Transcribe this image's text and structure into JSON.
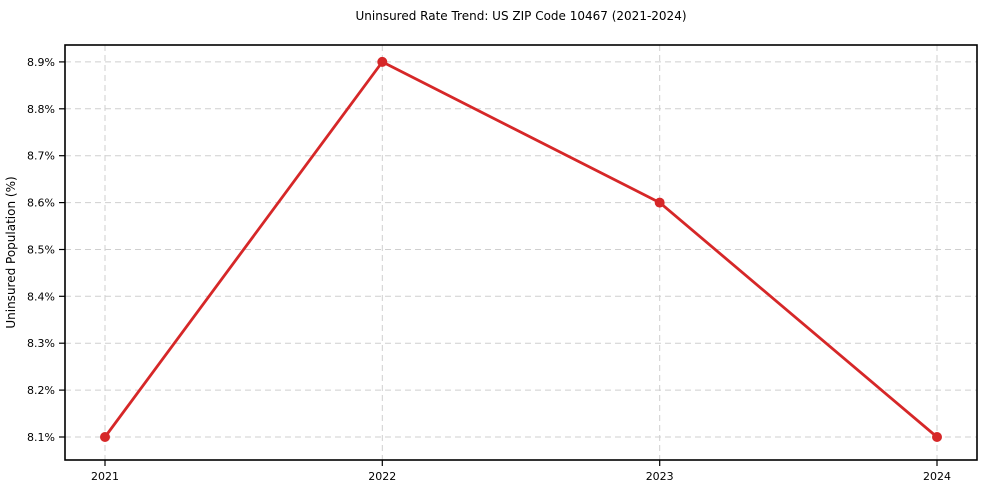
{
  "chart_data": {
    "type": "line",
    "title": "Uninsured Rate Trend: US ZIP Code 10467 (2021-2024)",
    "xlabel": "",
    "ylabel": "Uninsured Population (%)",
    "categories": [
      "2021",
      "2022",
      "2023",
      "2024"
    ],
    "values": [
      8.1,
      8.9,
      8.6,
      8.1
    ],
    "y_ticks": [
      8.1,
      8.2,
      8.3,
      8.4,
      8.5,
      8.6,
      8.7,
      8.8,
      8.9
    ],
    "y_tick_labels": [
      "8.1%",
      "8.2%",
      "8.3%",
      "8.4%",
      "8.5%",
      "8.6%",
      "8.7%",
      "8.8%",
      "8.9%"
    ],
    "ylim": [
      8.051,
      8.936
    ],
    "grid": true,
    "grid_style": "dashed",
    "legend": "none",
    "line_color": "#d62728",
    "marker": "circle",
    "grid_color": "#cfcfcf",
    "frame_color": "#000000",
    "background_color": "#ffffff"
  }
}
